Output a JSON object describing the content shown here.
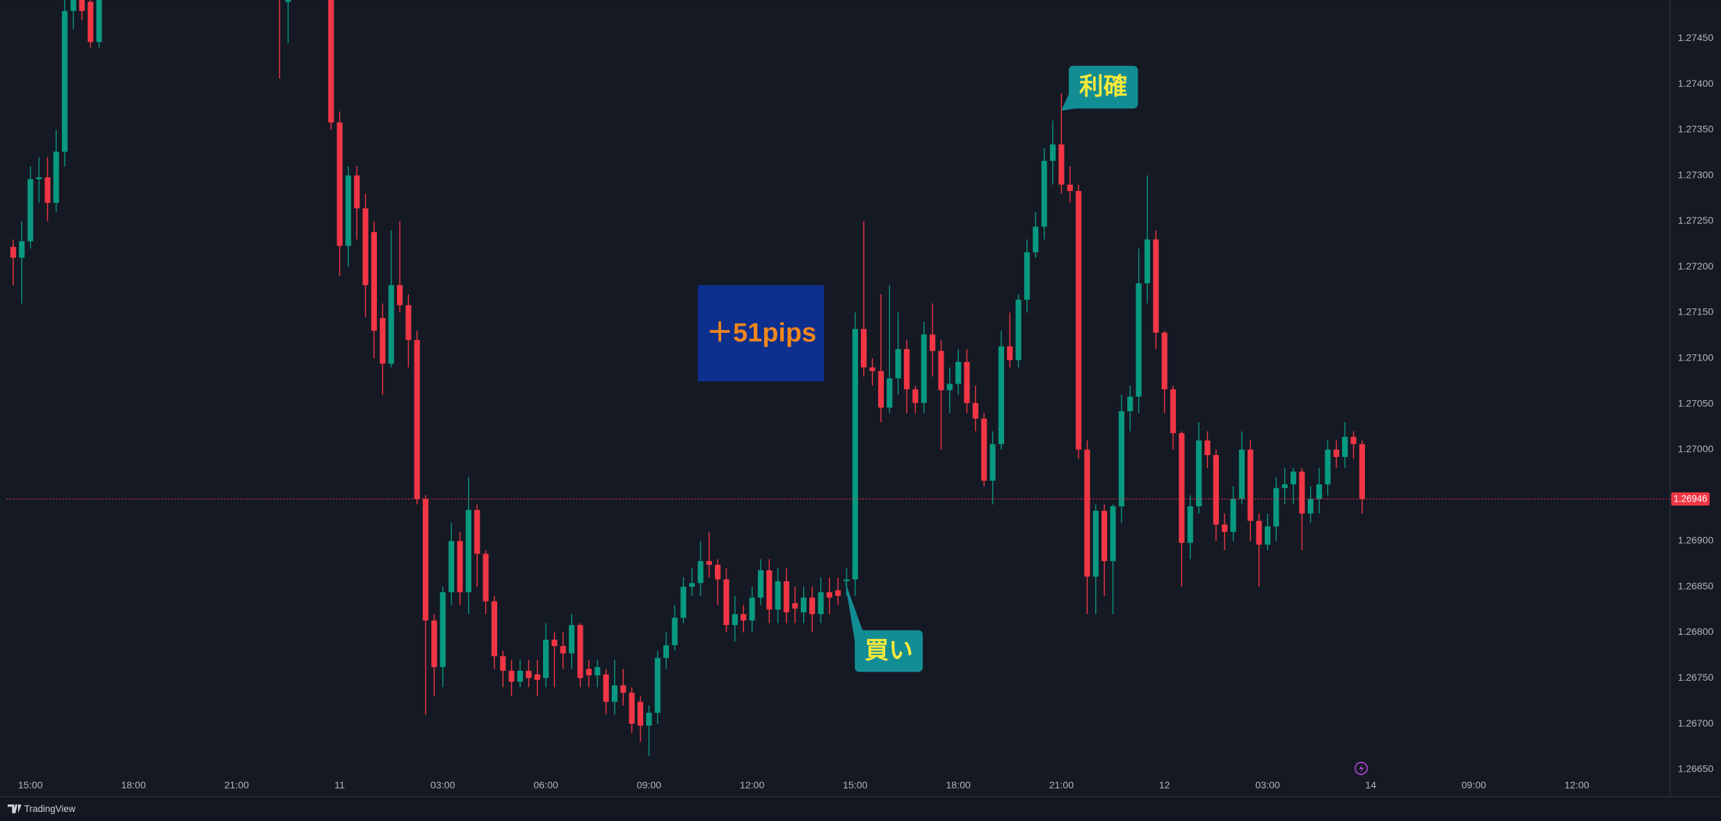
{
  "chart_data": {
    "type": "candlestick",
    "up_color": "#089981",
    "down_color": "#f23645",
    "open": [
      1.27222,
      1.2721,
      1.27228,
      1.27296,
      1.27298,
      1.2727,
      1.27326,
      1.2748,
      1.2751,
      1.2749,
      1.27446,
      null,
      null,
      null,
      null,
      null,
      null,
      null,
      null,
      null,
      null,
      null,
      null,
      null,
      null,
      null,
      null,
      null,
      null,
      null,
      null,
      1.2751,
      1.2749,
      null,
      null,
      null,
      null,
      1.2752,
      1.27358,
      1.27223,
      1.273,
      1.27264,
      1.27238,
      1.27144,
      1.27094,
      1.2718,
      1.27158,
      1.2712,
      1.26946,
      1.26813,
      1.26762,
      1.26844,
      1.269,
      1.26844,
      1.26934,
      1.26886,
      1.26834,
      1.26774,
      1.26758,
      1.26746,
      1.26758,
      1.26754,
      1.2675,
      1.26792,
      1.26785,
      1.26777,
      1.26808,
      1.2676,
      1.26753,
      1.26754,
      1.26724,
      1.26742,
      1.26734,
      1.26724,
      1.26698,
      1.26712,
      1.26772,
      1.26786,
      1.26816,
      1.2685,
      1.26854,
      1.26878,
      1.26874,
      1.26858,
      1.26808,
      1.2682,
      1.26813,
      1.26838,
      1.26868,
      1.26825,
      1.26856,
      1.26832,
      1.26822,
      1.26838,
      1.2682,
      1.26844,
      1.26846,
      1.26856,
      1.26858,
      1.27132,
      1.2709,
      1.27086,
      1.27046,
      1.27078,
      1.2711,
      1.27066,
      1.27051,
      1.27126,
      1.27108,
      1.27065,
      1.27072,
      1.27096,
      1.27051,
      1.27034,
      1.26966,
      1.27006,
      1.27113,
      1.27098,
      1.27164,
      1.27216,
      1.27244,
      1.27316,
      1.27334,
      1.2729,
      1.27283,
      1.27,
      1.26861,
      1.26933,
      1.26878,
      1.26938,
      1.27042,
      1.27058,
      1.27182,
      1.2723,
      1.27128,
      1.27066,
      1.27018,
      1.26898,
      1.26938,
      1.2701,
      1.26994,
      1.26918,
      1.2691,
      1.26946,
      1.27,
      1.26922,
      1.26896,
      1.26916,
      1.26958,
      1.26962,
      1.26976,
      1.2693,
      1.26946,
      1.26962,
      1.27,
      1.26992,
      1.27014,
      1.27006
    ],
    "high": [
      1.2723,
      1.2725,
      1.2731,
      1.2732,
      1.2732,
      1.2735,
      1.275,
      1.2751,
      1.2752,
      1.275,
      1.2752,
      null,
      null,
      null,
      null,
      null,
      null,
      null,
      null,
      null,
      null,
      null,
      null,
      null,
      null,
      null,
      null,
      null,
      null,
      null,
      null,
      1.2753,
      1.2752,
      null,
      null,
      null,
      null,
      1.2753,
      1.2737,
      1.2731,
      1.2731,
      1.2728,
      1.2725,
      1.2716,
      1.2724,
      1.2725,
      1.2717,
      1.2713,
      1.2695,
      1.2682,
      1.2685,
      1.2692,
      1.2691,
      1.2697,
      1.2694,
      1.2689,
      1.2684,
      1.2678,
      1.2677,
      1.2677,
      1.2677,
      1.2677,
      1.2681,
      1.268,
      1.268,
      1.2682,
      1.2681,
      1.2677,
      1.2677,
      1.2676,
      1.2677,
      1.2676,
      1.2674,
      1.2673,
      1.2672,
      1.2678,
      1.268,
      1.2683,
      1.2686,
      1.2687,
      1.269,
      1.2691,
      1.2688,
      1.2687,
      1.2684,
      1.2683,
      1.2685,
      1.2688,
      1.2688,
      1.2687,
      1.2687,
      1.2685,
      1.2685,
      1.2685,
      1.2686,
      1.2686,
      1.2686,
      1.2687,
      1.2715,
      1.2725,
      1.271,
      1.2717,
      1.2718,
      1.2715,
      1.2712,
      1.2707,
      1.2714,
      1.2716,
      1.2712,
      1.2709,
      1.2711,
      1.2711,
      1.2707,
      1.2704,
      1.2702,
      1.2713,
      1.2715,
      1.2717,
      1.2723,
      1.2726,
      1.2733,
      1.2736,
      1.2739,
      1.2731,
      1.2729,
      1.2701,
      1.2694,
      1.2694,
      1.2694,
      1.2706,
      1.2707,
      1.2722,
      1.273,
      1.2724,
      1.2713,
      1.2707,
      1.2702,
      1.2695,
      1.2703,
      1.2702,
      1.27,
      1.2693,
      1.2696,
      1.2702,
      1.2701,
      1.2693,
      1.2693,
      1.2697,
      1.2698,
      1.2698,
      1.2698,
      1.2696,
      1.2698,
      1.2701,
      1.2701,
      1.2703,
      1.2702,
      1.2701
    ],
    "low": [
      1.2718,
      1.2716,
      1.2722,
      1.2727,
      1.2725,
      1.2726,
      1.2731,
      1.2746,
      1.2747,
      1.2744,
      1.2744,
      null,
      null,
      null,
      null,
      null,
      null,
      null,
      null,
      null,
      null,
      null,
      null,
      null,
      null,
      null,
      null,
      null,
      null,
      null,
      null,
      1.27406,
      1.27445,
      null,
      null,
      null,
      null,
      1.2735,
      1.2719,
      1.272,
      1.2723,
      1.27145,
      1.271,
      1.2706,
      1.2709,
      1.2715,
      1.2709,
      1.2694,
      1.2671,
      1.2673,
      1.2674,
      1.2683,
      1.2683,
      1.2682,
      1.2685,
      1.2682,
      1.2676,
      1.2674,
      1.2673,
      1.2674,
      1.2674,
      1.2673,
      1.2674,
      1.2674,
      1.2676,
      1.2676,
      1.2674,
      1.2674,
      1.2674,
      1.2671,
      1.2671,
      1.2672,
      1.2669,
      1.2668,
      1.26665,
      1.267,
      1.2676,
      1.2678,
      1.2681,
      1.2684,
      1.2684,
      1.2686,
      1.2683,
      1.268,
      1.2679,
      1.268,
      1.268,
      1.2683,
      1.2681,
      1.2681,
      1.2681,
      1.2681,
      1.2681,
      1.268,
      1.2681,
      1.2682,
      1.2683,
      1.2684,
      1.2684,
      1.2708,
      1.2707,
      1.2703,
      1.2704,
      1.2706,
      1.2704,
      1.2704,
      1.2704,
      1.2708,
      1.27,
      1.2704,
      1.2706,
      1.2704,
      1.2702,
      1.2696,
      1.2694,
      1.27,
      1.2709,
      1.2709,
      1.2715,
      1.2721,
      1.2723,
      1.2729,
      1.2728,
      1.2727,
      1.2699,
      1.2682,
      1.2682,
      1.2684,
      1.2682,
      1.2692,
      1.2702,
      1.2704,
      1.2716,
      1.2711,
      1.2704,
      1.27,
      1.2685,
      1.2688,
      1.2693,
      1.2698,
      1.269,
      1.2689,
      1.269,
      1.2694,
      1.269,
      1.2685,
      1.2689,
      1.269,
      1.2694,
      1.2694,
      1.2689,
      1.2692,
      1.2693,
      1.2695,
      1.2698,
      1.2698,
      1.2699,
      1.2693
    ],
    "close": [
      1.2721,
      1.27228,
      1.27296,
      1.27298,
      1.2727,
      1.27326,
      1.2748,
      1.27492,
      1.2748,
      1.27446,
      1.275,
      null,
      null,
      null,
      null,
      null,
      null,
      null,
      null,
      null,
      null,
      null,
      null,
      null,
      null,
      null,
      null,
      null,
      null,
      null,
      null,
      1.275,
      1.275,
      null,
      null,
      null,
      null,
      1.27358,
      1.27223,
      1.273,
      1.27264,
      1.2718,
      1.2713,
      1.27094,
      1.2718,
      1.27158,
      1.2712,
      1.26946,
      1.26813,
      1.26762,
      1.26844,
      1.269,
      1.26844,
      1.26934,
      1.26886,
      1.26834,
      1.26774,
      1.26758,
      1.26746,
      1.26758,
      1.2675,
      1.26748,
      1.26792,
      1.26785,
      1.26777,
      1.26808,
      1.2675,
      1.26753,
      1.26762,
      1.26724,
      1.26742,
      1.26734,
      1.267,
      1.26698,
      1.26712,
      1.26772,
      1.26786,
      1.26816,
      1.2685,
      1.26854,
      1.26878,
      1.26874,
      1.26858,
      1.26808,
      1.2682,
      1.26813,
      1.26838,
      1.26868,
      1.26825,
      1.26856,
      1.26822,
      1.26826,
      1.26838,
      1.2682,
      1.26844,
      1.26838,
      1.2684,
      1.26858,
      1.27132,
      1.2709,
      1.27086,
      1.27046,
      1.27078,
      1.2711,
      1.27066,
      1.27051,
      1.27126,
      1.27108,
      1.27065,
      1.27072,
      1.27096,
      1.27051,
      1.27034,
      1.26966,
      1.27006,
      1.27113,
      1.27098,
      1.27164,
      1.27216,
      1.27244,
      1.27316,
      1.27334,
      1.2729,
      1.27283,
      1.27,
      1.26861,
      1.26933,
      1.26878,
      1.26938,
      1.27042,
      1.27058,
      1.27182,
      1.2723,
      1.27128,
      1.27066,
      1.27018,
      1.26898,
      1.26938,
      1.2701,
      1.26994,
      1.26918,
      1.2691,
      1.26946,
      1.27,
      1.26922,
      1.26896,
      1.26916,
      1.26958,
      1.26962,
      1.26976,
      1.2693,
      1.26946,
      1.26962,
      1.27,
      1.26992,
      1.27014,
      1.27006,
      1.26946
    ],
    "xlim": [
      -0.77,
      192.59
    ],
    "xticks": [
      {
        "value": 2,
        "label": "15:00"
      },
      {
        "value": 14,
        "label": "18:00"
      },
      {
        "value": 26,
        "label": "21:00"
      },
      {
        "value": 38,
        "label": "11"
      },
      {
        "value": 50,
        "label": "03:00"
      },
      {
        "value": 62,
        "label": "06:00"
      },
      {
        "value": 74,
        "label": "09:00"
      },
      {
        "value": 86,
        "label": "12:00"
      },
      {
        "value": 98,
        "label": "15:00"
      },
      {
        "value": 110,
        "label": "18:00"
      },
      {
        "value": 122,
        "label": "21:00"
      },
      {
        "value": 134,
        "label": "12"
      },
      {
        "value": 146,
        "label": "03:00"
      },
      {
        "value": 158,
        "label": "14"
      },
      {
        "value": 170,
        "label": "09:00"
      },
      {
        "value": 182,
        "label": "12:00"
      }
    ],
    "ylim": [
      1.2662,
      1.27492
    ],
    "yticks": [
      {
        "value": 1.2745,
        "label": "1.27450"
      },
      {
        "value": 1.274,
        "label": "1.27400"
      },
      {
        "value": 1.2735,
        "label": "1.27350"
      },
      {
        "value": 1.273,
        "label": "1.27300"
      },
      {
        "value": 1.2725,
        "label": "1.27250"
      },
      {
        "value": 1.272,
        "label": "1.27200"
      },
      {
        "value": 1.2715,
        "label": "1.27150"
      },
      {
        "value": 1.271,
        "label": "1.27100"
      },
      {
        "value": 1.2705,
        "label": "1.27050"
      },
      {
        "value": 1.27,
        "label": "1.27000"
      },
      {
        "value": 1.269,
        "label": "1.26900"
      },
      {
        "value": 1.2685,
        "label": "1.26850"
      },
      {
        "value": 1.268,
        "label": "1.26800"
      },
      {
        "value": 1.2675,
        "label": "1.26750"
      },
      {
        "value": 1.267,
        "label": "1.26700"
      },
      {
        "value": 1.2665,
        "label": "1.26650"
      }
    ],
    "grid": false,
    "last_price": 1.26946,
    "annotations": [
      "利確",
      "買い",
      "＋51pips"
    ],
    "brand": "TradingView"
  }
}
